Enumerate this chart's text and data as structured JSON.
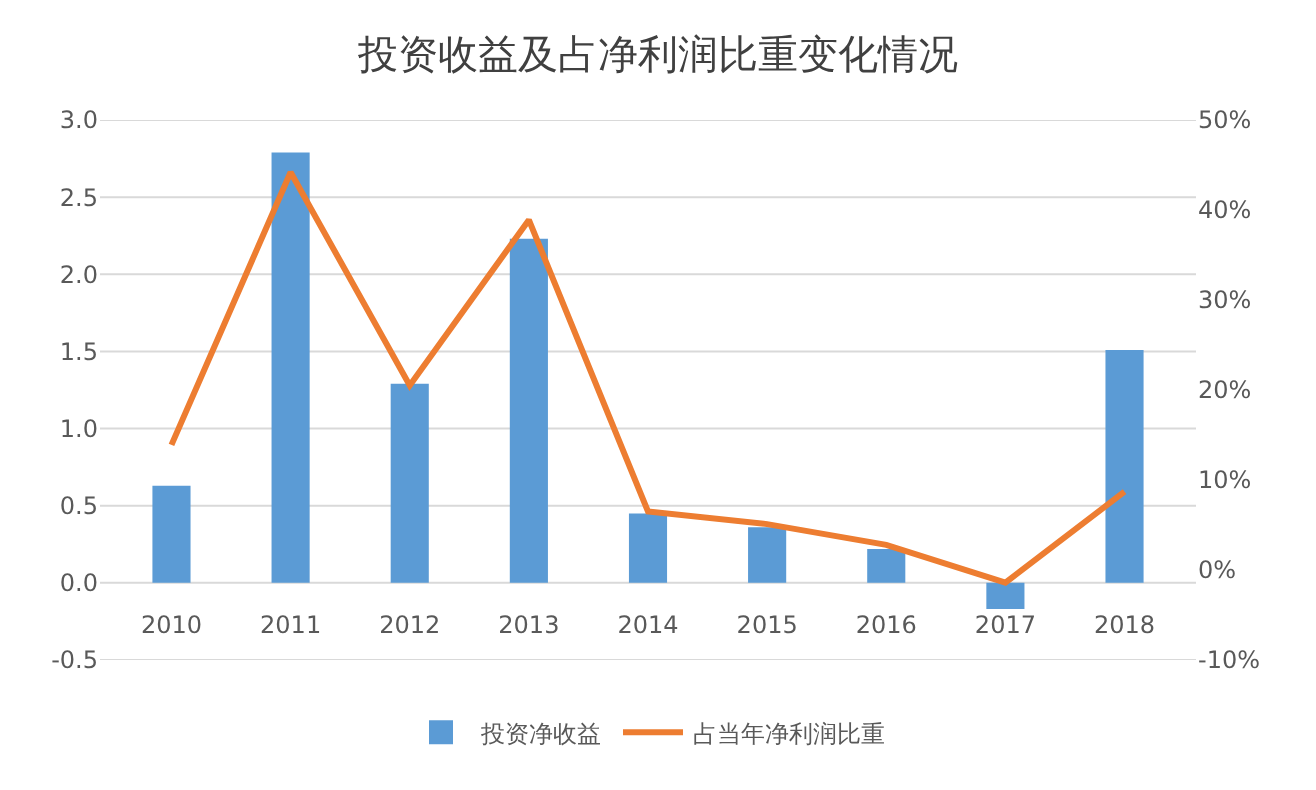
{
  "chart_data": {
    "type": "bar",
    "title": "投资收益及占净利润比重变化情况",
    "categories": [
      "2010",
      "2011",
      "2012",
      "2013",
      "2014",
      "2015",
      "2016",
      "2017",
      "2018"
    ],
    "series": [
      {
        "name": "投资净收益",
        "color": "#5b9bd5",
        "values": [
          0.63,
          2.79,
          1.29,
          2.23,
          0.45,
          0.36,
          0.22,
          -0.17,
          1.51
        ]
      },
      {
        "name": "占当年净利润比重",
        "type": "line",
        "axis": "y2",
        "color": "#ed7d31",
        "values": [
          13.9,
          44.2,
          20.5,
          38.9,
          6.5,
          5.1,
          2.8,
          -1.4,
          8.7
        ]
      }
    ],
    "ylim": [
      -0.5,
      3.0
    ],
    "yticks": [
      -0.5,
      {
        "value": 0,
        "label": "0.0"
      },
      0.5,
      {
        "value": 1,
        "label": "1.0"
      },
      1.5,
      {
        "value": 2,
        "label": "2.0"
      },
      2.5,
      {
        "value": 3,
        "label": "3.0"
      }
    ],
    "y2lim": [
      -10,
      50
    ],
    "y2ticks": [
      {
        "value": -10,
        "label": "-10%"
      },
      {
        "value": 0,
        "label": "0%"
      },
      {
        "value": 10,
        "label": "10%"
      },
      {
        "value": 20,
        "label": "20%"
      },
      {
        "value": 30,
        "label": "30%"
      },
      {
        "value": 40,
        "label": "40%"
      },
      {
        "value": 50,
        "label": "50%"
      }
    ],
    "grid": "y",
    "legend": "bottom",
    "marker": "none",
    "line_style": "solid"
  }
}
